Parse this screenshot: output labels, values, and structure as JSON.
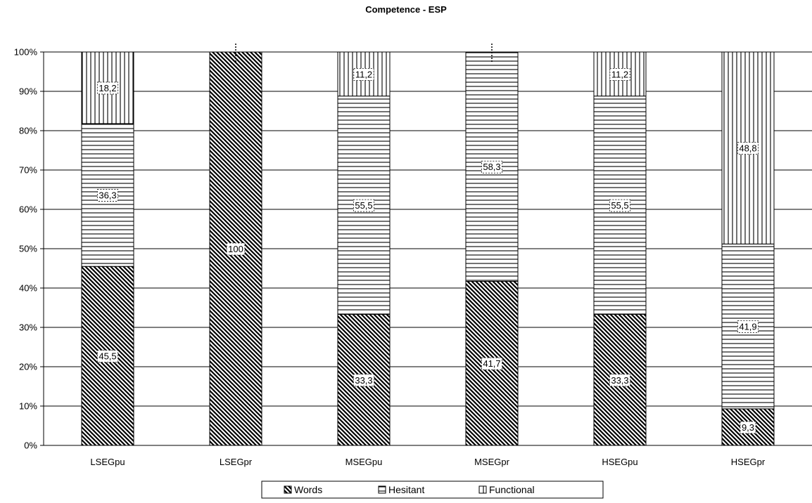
{
  "chart_data": {
    "type": "bar",
    "stacked": true,
    "title": "Competence - ESP",
    "xlabel": "",
    "ylabel": "",
    "ylim": [
      0,
      100
    ],
    "y_ticks": [
      "0%",
      "10%",
      "20%",
      "30%",
      "40%",
      "50%",
      "60%",
      "70%",
      "80%",
      "90%",
      "100%"
    ],
    "grid": "horizontal",
    "legend_position": "bottom",
    "categories": [
      "LSEGpu",
      "LSEGpr",
      "MSEGpu",
      "MSEGpr",
      "HSEGpu",
      "HSEGpr"
    ],
    "series": [
      {
        "name": "Words",
        "pattern": "diagonal-hatch",
        "color": "#000000",
        "values": [
          45.5,
          100,
          33.3,
          41.7,
          33.3,
          9.3
        ],
        "labels": [
          "45,5",
          "100",
          "33,3",
          "41,7",
          "33,3",
          "9,3"
        ]
      },
      {
        "name": "Hesitant",
        "pattern": "horizontal-lines",
        "color": "#000000",
        "values": [
          36.3,
          0,
          55.5,
          58.3,
          55.5,
          41.9
        ],
        "labels": [
          "36,3",
          "",
          "55,5",
          "58,3",
          "55,5",
          "41,9"
        ]
      },
      {
        "name": "Functional",
        "pattern": "vertical-lines",
        "color": "#000000",
        "values": [
          18.2,
          0,
          11.2,
          0,
          11.2,
          48.8
        ],
        "labels": [
          "18,2",
          "",
          "11,2",
          "",
          "11,2",
          "48,8"
        ]
      }
    ]
  }
}
